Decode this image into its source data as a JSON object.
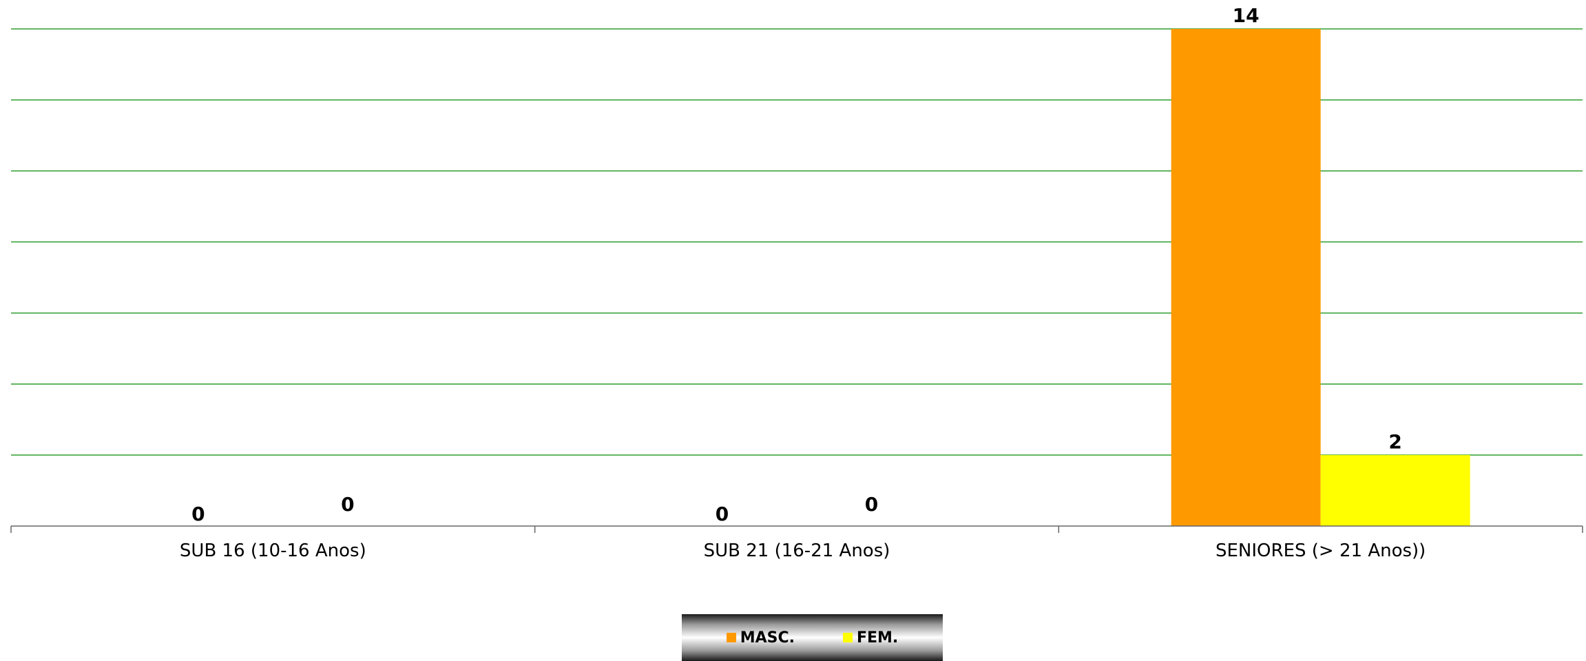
{
  "chart_data": {
    "type": "bar",
    "categories": [
      "SUB 16 (10-16 Anos)",
      "SUB 21 (16-21 Anos)",
      "SENIORES (> 21 Anos))"
    ],
    "series": [
      {
        "name": "MASC.",
        "values": [
          0,
          0,
          14
        ],
        "color": "#FF9900"
      },
      {
        "name": "FEM.",
        "values": [
          0,
          0,
          2
        ],
        "color": "#FFFF00"
      }
    ],
    "ylim": [
      0,
      14
    ],
    "gridline_step": 2,
    "grid": true,
    "gridline_color": "#2E9E2E",
    "legend_position": "bottom-center",
    "xlabel": "",
    "ylabel": ""
  }
}
